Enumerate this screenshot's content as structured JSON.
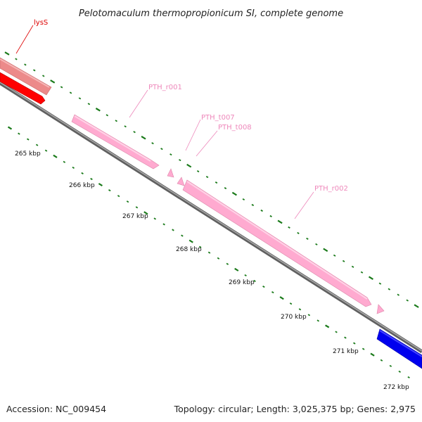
{
  "title": "Pelotomaculum thermopropionicum SI, complete genome",
  "footer": {
    "accession": "Accession: NC_009454",
    "summary": "Topology: circular; Length: 3,025,375 bp; Genes: 2,975"
  },
  "scale_labels": [
    "265 kbp",
    "266 kbp",
    "267 kbp",
    "268 kbp",
    "269 kbp",
    "270 kbp",
    "271 kbp",
    "272 kbp"
  ],
  "genes": [
    {
      "label": "lysS",
      "color": "#dd0000",
      "fill": "#ff0000"
    },
    {
      "label": "PTH_r001",
      "color": "#ee88bb",
      "fill": "#ffaad0"
    },
    {
      "label": "PTH_t007",
      "color": "#ee88bb",
      "fill": "#ffaad0"
    },
    {
      "label": "PTH_t008",
      "color": "#ee88bb",
      "fill": "#ffaad0"
    },
    {
      "label": "PTH_r002",
      "color": "#ee88bb",
      "fill": "#ffaad0"
    }
  ],
  "colors": {
    "backbone": "#7a7a7a",
    "tick_marks": "#1a7a1a",
    "upper_red_feature": "#e88080",
    "lower_blue_feature": "#0000ee"
  }
}
